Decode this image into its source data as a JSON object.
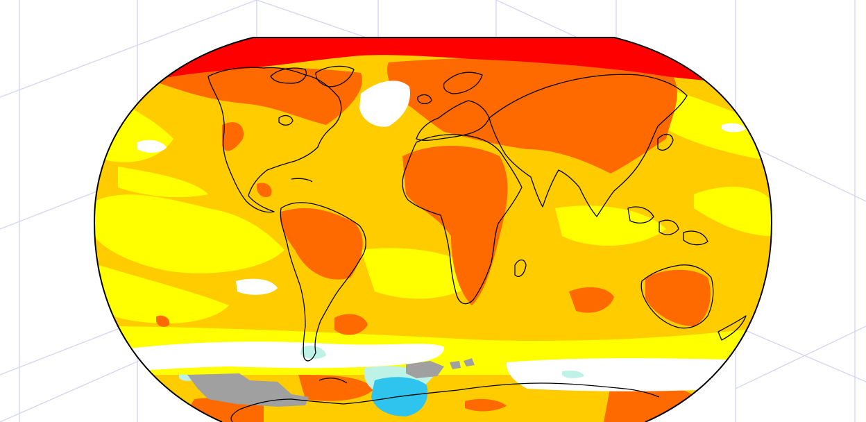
{
  "map": {
    "projection": "Robinson",
    "subject": "surface-temperature-anomaly",
    "colors": {
      "background": "#ffffff",
      "grid": "#d6d6f2",
      "coast": "#000000",
      "no_data": "#a0a0a0",
      "bins": [
        "#2ec4ee",
        "#bff2e6",
        "#ffffff",
        "#ffff00",
        "#ffcc00",
        "#ff6a00",
        "#ff0000"
      ]
    }
  }
}
